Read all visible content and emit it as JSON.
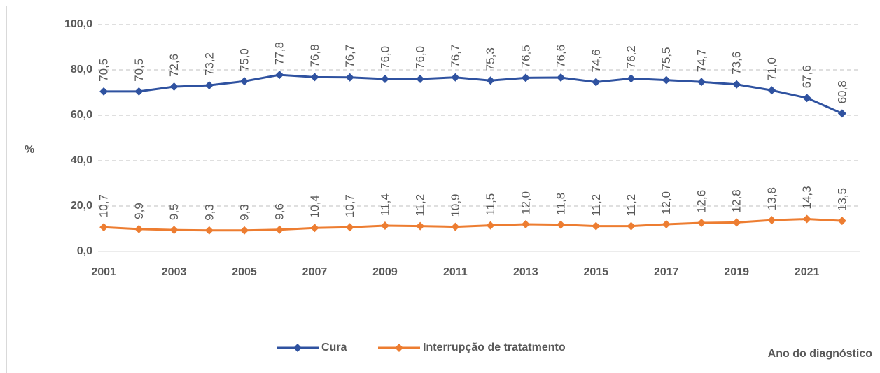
{
  "chart_data": {
    "type": "line",
    "y_label": "%",
    "x_label": "Ano do diagnóstico",
    "categories": [
      "2001",
      null,
      "2003",
      null,
      "2005",
      null,
      "2007",
      null,
      "2009",
      null,
      "2011",
      null,
      "2013",
      null,
      "2015",
      null,
      "2017",
      null,
      "2019",
      null,
      "2021",
      null
    ],
    "series": [
      {
        "name": "Cura",
        "color": "#2f52a0",
        "values": [
          70.5,
          70.5,
          72.6,
          73.2,
          75.0,
          77.8,
          76.8,
          76.7,
          76.0,
          76.0,
          76.7,
          75.3,
          76.5,
          76.6,
          74.6,
          76.2,
          75.5,
          74.7,
          73.6,
          71.0,
          67.6,
          60.8
        ],
        "value_labels": [
          "70,5",
          "70,5",
          "72,6",
          "73,2",
          "75,0",
          "77,8",
          "76,8",
          "76,7",
          "76,0",
          "76,0",
          "76,7",
          "75,3",
          "76,5",
          "76,6",
          "74,6",
          "76,2",
          "75,5",
          "74,7",
          "73,6",
          "71,0",
          "67,6",
          "60,8"
        ]
      },
      {
        "name": "Interrupção de tratatmento",
        "color": "#ed7d31",
        "values": [
          10.7,
          9.9,
          9.5,
          9.3,
          9.3,
          9.6,
          10.4,
          10.7,
          11.4,
          11.2,
          10.9,
          11.5,
          12.0,
          11.8,
          11.2,
          11.2,
          12.0,
          12.6,
          12.8,
          13.8,
          14.3,
          13.5
        ],
        "value_labels": [
          "10,7",
          "9,9",
          "9,5",
          "9,3",
          "9,3",
          "9,6",
          "10,4",
          "10,7",
          "11,4",
          "11,2",
          "10,9",
          "11,5",
          "12,0",
          "11,8",
          "11,2",
          "11,2",
          "12,0",
          "12,6",
          "12,8",
          "13,8",
          "14,3",
          "13,5"
        ]
      }
    ],
    "ylim": [
      0,
      100
    ],
    "yticks": [
      {
        "value": 0,
        "label": "0,0"
      },
      {
        "value": 20,
        "label": "20,0"
      },
      {
        "value": 40,
        "label": "40,0"
      },
      {
        "value": 60,
        "label": "60,0"
      },
      {
        "value": 80,
        "label": "80,0"
      },
      {
        "value": 100,
        "label": "100,0"
      }
    ],
    "grid": true
  }
}
